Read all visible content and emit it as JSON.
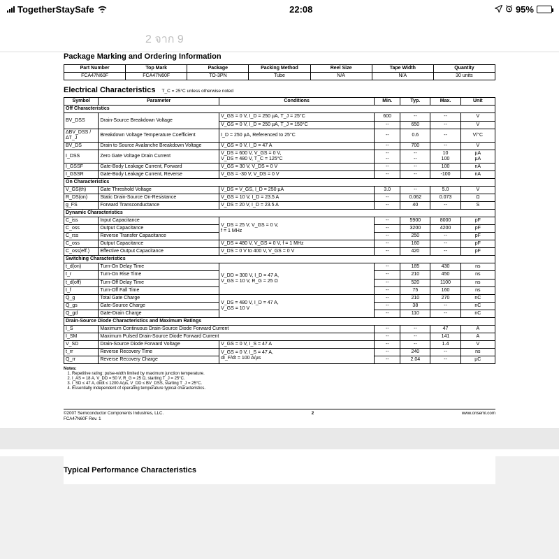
{
  "status": {
    "carrier": "TogetherStaySafe",
    "time": "22:08",
    "battery_pct": "95%"
  },
  "page_indicator": "2 จาก 9",
  "doc": {
    "pkg_title": "Package Marking and Ordering Information",
    "pkg_headers": [
      "Part Number",
      "Top Mark",
      "Package",
      "Packing Method",
      "Reel Size",
      "Tape Width",
      "Quantity"
    ],
    "pkg_row": [
      "FCA47N60F",
      "FCA47N60F",
      "TO-3PN",
      "Tube",
      "N/A",
      "N/A",
      "30 units"
    ],
    "elec_title": "Electrical Characteristics",
    "elec_sub": "T_C = 25°C unless otherwise noted",
    "elec_headers": [
      "Symbol",
      "Parameter",
      "Conditions",
      "Min.",
      "Typ.",
      "Max.",
      "Unit"
    ],
    "col_widths_pct": [
      8,
      28,
      36,
      6,
      7,
      7,
      8
    ],
    "sections": [
      {
        "title": "Off Characteristics",
        "rows": [
          {
            "sym": "BV_DSS",
            "param": "Drain-Source Breakdown Voltage",
            "cond": "V_GS = 0 V, I_D = 250 µA, T_J = 25°C",
            "min": "600",
            "typ": "--",
            "max": "--",
            "unit": "V",
            "rowspan_sym": 2,
            "rowspan_param": 2
          },
          {
            "cond": "V_GS = 0 V, I_D = 250 µA, T_J = 150°C",
            "min": "--",
            "typ": "650",
            "max": "--",
            "unit": "V"
          },
          {
            "sym": "ΔBV_DSS / ΔT_J",
            "param": "Breakdown Voltage Temperature Coefficient",
            "cond": "I_D = 250 µA, Referenced to 25°C",
            "min": "--",
            "typ": "0.6",
            "max": "--",
            "unit": "V/°C"
          },
          {
            "sym": "BV_DS",
            "param": "Drain to Source Avalanche Breakdown Voltage",
            "cond": "V_GS = 0 V, I_D = 47 A",
            "min": "--",
            "typ": "700",
            "max": "--",
            "unit": "V"
          },
          {
            "sym": "I_DSS",
            "param": "Zero Gate Voltage Drain Current",
            "cond": "V_DS = 600 V, V_GS = 0 V,\nV_DS = 480 V, T_C = 125°C",
            "min": "--\n--",
            "typ": "--\n--",
            "max": "10\n100",
            "unit": "µA\nµA"
          },
          {
            "sym": "I_GSSF",
            "param": "Gate-Body Leakage Current, Forward",
            "cond": "V_GS = 30 V, V_DS = 0 V",
            "min": "--",
            "typ": "--",
            "max": "100",
            "unit": "nA"
          },
          {
            "sym": "I_GSSR",
            "param": "Gate-Body Leakage Current, Reverse",
            "cond": "V_GS = -30 V, V_DS = 0 V",
            "min": "--",
            "typ": "--",
            "max": "-100",
            "unit": "nA"
          }
        ]
      },
      {
        "title": "On Characteristics",
        "rows": [
          {
            "sym": "V_GS(th)",
            "param": "Gate Threshold Voltage",
            "cond": "V_DS = V_GS, I_D = 250 µA",
            "min": "3.0",
            "typ": "--",
            "max": "5.0",
            "unit": "V"
          },
          {
            "sym": "R_DS(on)",
            "param": "Static Drain-Source On-Resistance",
            "cond": "V_GS = 10 V, I_D = 23.5 A",
            "min": "--",
            "typ": "0.062",
            "max": "0.073",
            "unit": "Ω"
          },
          {
            "sym": "g_FS",
            "param": "Forward Transconductance",
            "cond": "V_DS = 20 V, I_D = 23.5 A",
            "min": "--",
            "typ": "40",
            "max": "--",
            "unit": "S"
          }
        ]
      },
      {
        "title": "Dynamic Characteristics",
        "rows": [
          {
            "sym": "C_iss",
            "param": "Input Capacitance",
            "cond": "V_DS = 25 V, V_GS = 0 V,\nf = 1 MHz",
            "min": "--",
            "typ": "5900",
            "max": "8000",
            "unit": "pF",
            "rowspan_cond": 3
          },
          {
            "sym": "C_oss",
            "param": "Output Capacitance",
            "min": "--",
            "typ": "3200",
            "max": "4200",
            "unit": "pF"
          },
          {
            "sym": "C_rss",
            "param": "Reverse Transfer Capacitance",
            "min": "--",
            "typ": "250",
            "max": "--",
            "unit": "pF"
          },
          {
            "sym": "C_oss",
            "param": "Output Capacitance",
            "cond": "V_DS = 480 V, V_GS = 0 V, f = 1 MHz",
            "min": "--",
            "typ": "160",
            "max": "--",
            "unit": "pF"
          },
          {
            "sym": "C_oss(eff.)",
            "param": "Effective Output Capacitance",
            "cond": "V_DS = 0 V to 400 V, V_GS = 0 V",
            "min": "--",
            "typ": "420",
            "max": "--",
            "unit": "pF"
          }
        ]
      },
      {
        "title": "Switching Characteristics",
        "rows": [
          {
            "sym": "t_d(on)",
            "param": "Turn-On Delay Time",
            "cond": "V_DD = 300 V, I_D = 47 A,\nV_GS = 10 V, R_G = 25 Ω",
            "min": "--",
            "typ": "185",
            "max": "430",
            "unit": "ns",
            "rowspan_cond": 4
          },
          {
            "sym": "t_r",
            "param": "Turn-On Rise Time",
            "min": "--",
            "typ": "210",
            "max": "450",
            "unit": "ns"
          },
          {
            "sym": "t_d(off)",
            "param": "Turn-Off Delay Time",
            "min": "--",
            "typ": "520",
            "max": "1100",
            "unit": "ns"
          },
          {
            "sym": "t_f",
            "param": "Turn-Off Fall Time",
            "note": "(Note 4)",
            "min": "--",
            "typ": "75",
            "max": "160",
            "unit": "ns"
          },
          {
            "sym": "Q_g",
            "param": "Total Gate Charge",
            "cond": "V_DS = 480 V, I_D = 47 A,\nV_GS = 10 V",
            "min": "--",
            "typ": "210",
            "max": "270",
            "unit": "nC",
            "rowspan_cond": 3
          },
          {
            "sym": "Q_gs",
            "param": "Gate-Source Charge",
            "min": "--",
            "typ": "38",
            "max": "--",
            "unit": "nC"
          },
          {
            "sym": "Q_gd",
            "param": "Gate-Drain Charge",
            "note": "(Note 4)",
            "min": "--",
            "typ": "110",
            "max": "--",
            "unit": "nC"
          }
        ]
      },
      {
        "title": "Drain-Source Diode Characteristics and Maximum Ratings",
        "rows": [
          {
            "sym": "I_S",
            "param": "Maximum Continuous Drain-Source Diode Forward Current",
            "cond": "",
            "min": "--",
            "typ": "--",
            "max": "47",
            "unit": "A",
            "colspan_param": 2
          },
          {
            "sym": "I_SM",
            "param": "Maximum Pulsed Drain-Source Diode Forward Current",
            "cond": "",
            "min": "--",
            "typ": "--",
            "max": "141",
            "unit": "A",
            "colspan_param": 2
          },
          {
            "sym": "V_SD",
            "param": "Drain-Source Diode Forward Voltage",
            "cond": "V_GS = 0 V, I_S = 47 A",
            "min": "--",
            "typ": "--",
            "max": "1.4",
            "unit": "V"
          },
          {
            "sym": "t_rr",
            "param": "Reverse Recovery Time",
            "cond": "V_GS = 0 V, I_S = 47 A,\ndI_F/dt = 100 A/µs",
            "min": "--",
            "typ": "240",
            "max": "--",
            "unit": "ns",
            "rowspan_cond": 2
          },
          {
            "sym": "Q_rr",
            "param": "Reverse Recovery Charge",
            "min": "--",
            "typ": "2.04",
            "max": "--",
            "unit": "µC"
          }
        ]
      }
    ],
    "notes_title": "Notes:",
    "notes": [
      "Repetitive rating: pulse-width limited by maximum junction temperature.",
      "I_AS = 18 A, V_DD = 50 V, R_G = 25 Ω, starting T_J = 25°C.",
      "I_SD ≤ 47 A, di/dt ≤ 1200 A/µs, V_DD ≤ BV_DSS, starting T_J = 25°C.",
      "Essentially independent of operating temperature typical characteristics."
    ],
    "footer_left_line1": "©2007 Semiconductor Components Industries, LLC.",
    "footer_left_line2": "FCA47N60F Rev. 1",
    "footer_center": "2",
    "footer_right": "www.onsemi.com",
    "next_title": "Typical Performance Characteristics"
  },
  "style": {
    "page_bg": "#f0f0f0",
    "sheet_bg": "#ffffff",
    "border_color": "#000000",
    "indicator_color": "#bfbfbf"
  }
}
